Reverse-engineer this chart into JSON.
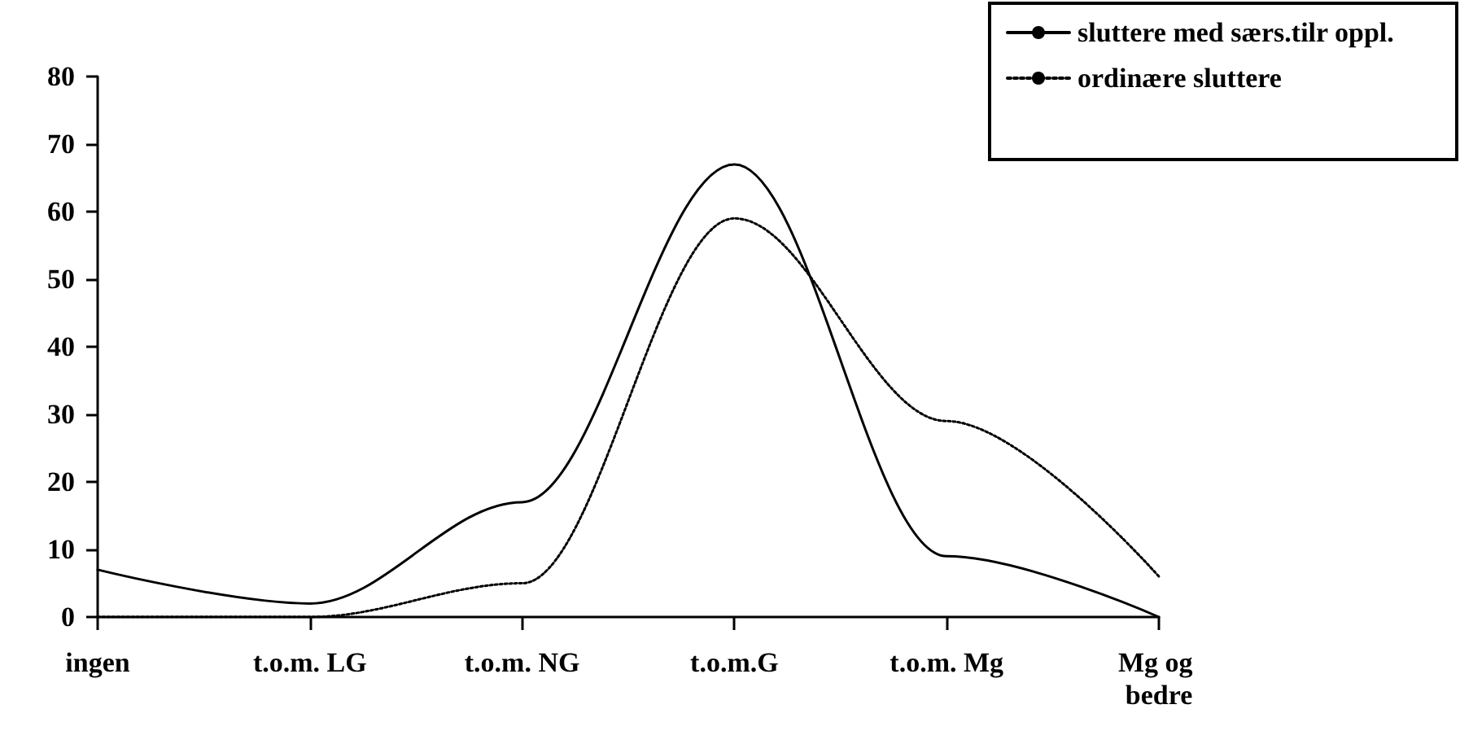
{
  "chart_data": {
    "type": "line",
    "categories": [
      "ingen",
      "t.o.m. LG",
      "t.o.m. NG",
      "t.o.m.G",
      "t.o.m. Mg",
      "Mg og bedre"
    ],
    "series": [
      {
        "name": "sluttere med særs.tilr oppl.",
        "color": "#000000",
        "line_style": "solid",
        "values": [
          7,
          2,
          17,
          67,
          9,
          0
        ]
      },
      {
        "name": "ordinære sluttere",
        "color": "#000000",
        "line_style": "dotted",
        "values": [
          0,
          0,
          5,
          59,
          29,
          6
        ]
      }
    ],
    "ylim": [
      0,
      80
    ],
    "yticks": [
      0,
      10,
      20,
      30,
      40,
      50,
      60,
      70,
      80
    ],
    "grid": false,
    "legend": "top right",
    "marker": "none"
  }
}
